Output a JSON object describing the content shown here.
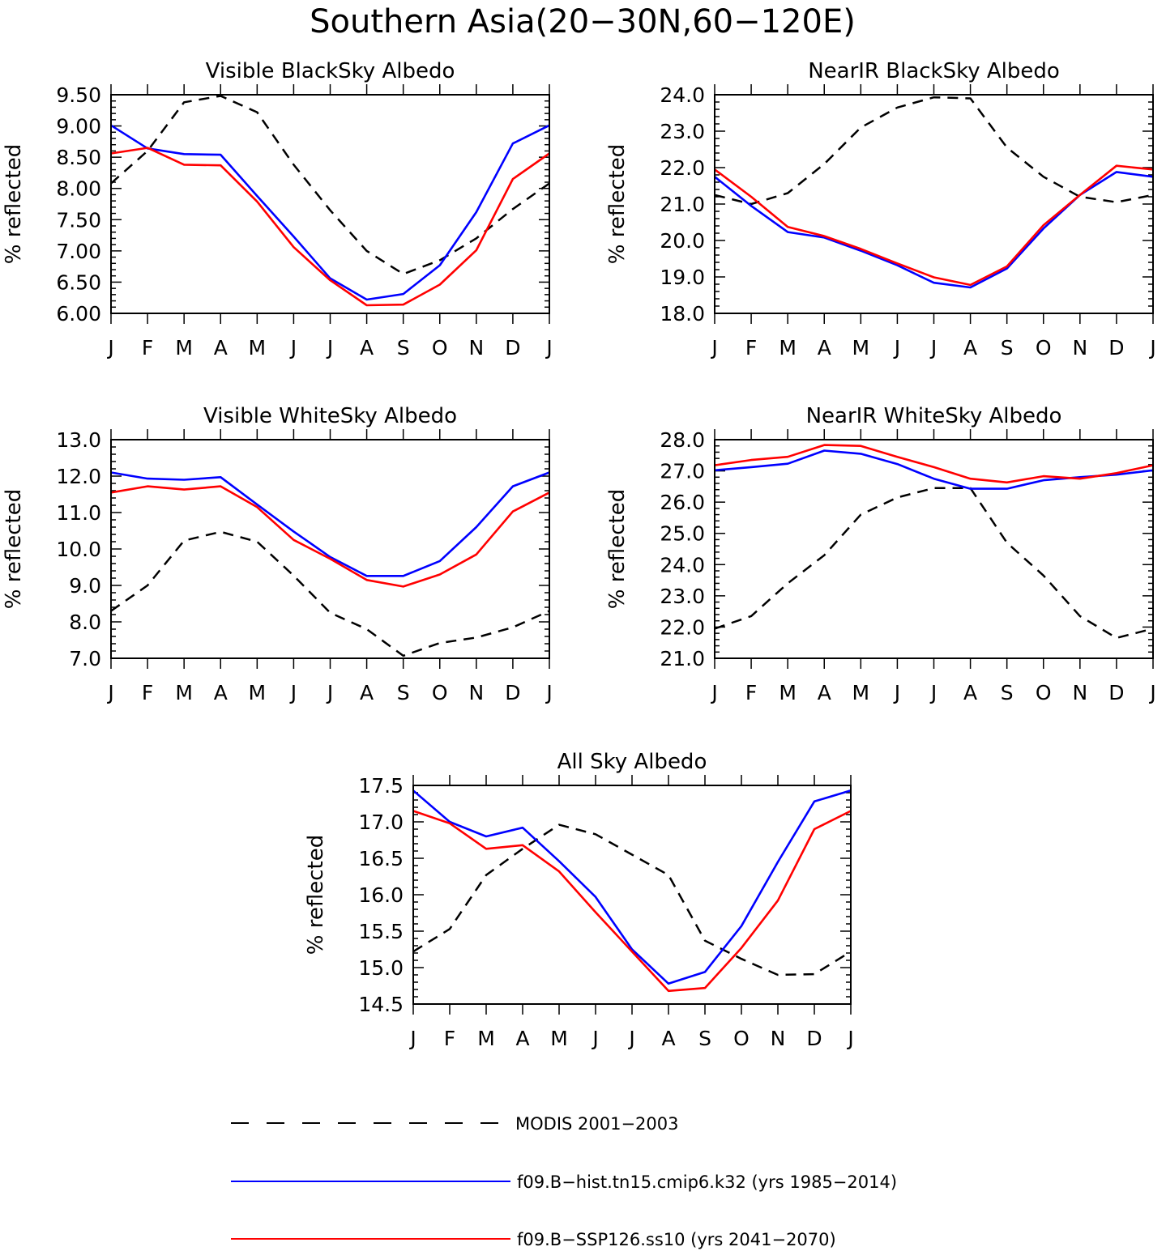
{
  "figure": {
    "title": "Southern Asia(20−30N,60−120E)"
  },
  "legend": {
    "entries": [
      {
        "label": "MODIS 2001−2003",
        "color": "#000000",
        "dash": true
      },
      {
        "label": "f09.B−hist.tn15.cmip6.k32 (yrs 1985−2014)",
        "color": "#0000ff",
        "dash": false
      },
      {
        "label": "f09.B−SSP126.ss10 (yrs 2041−2070)",
        "color": "#ff0000",
        "dash": false
      }
    ]
  },
  "chart_data": [
    {
      "type": "line",
      "title": "Visible BlackSky Albedo",
      "ylabel": "% reflected",
      "categories": [
        "J",
        "F",
        "M",
        "A",
        "M",
        "J",
        "J",
        "A",
        "S",
        "O",
        "N",
        "D",
        "J"
      ],
      "ylim": [
        6.0,
        9.5
      ],
      "yticks": [
        "6.00",
        "6.50",
        "7.00",
        "7.50",
        "8.00",
        "8.50",
        "9.00",
        "9.50"
      ],
      "series": [
        {
          "name": "MODIS 2001−2003",
          "color": "#000000",
          "dash": true,
          "values": [
            8.08,
            8.6,
            9.38,
            9.48,
            9.22,
            8.38,
            7.65,
            7.0,
            6.63,
            6.85,
            7.2,
            7.67,
            8.08
          ]
        },
        {
          "name": "f09.B−hist.tn15.cmip6.k32 (yrs 1985−2014)",
          "color": "#0000ff",
          "dash": false,
          "values": [
            9.01,
            8.64,
            8.55,
            8.54,
            7.88,
            7.23,
            6.56,
            6.22,
            6.31,
            6.77,
            7.62,
            8.72,
            9.01
          ]
        },
        {
          "name": "f09.B−SSP126.ss10 (yrs 2041−2070)",
          "color": "#ff0000",
          "dash": false,
          "values": [
            8.56,
            8.65,
            8.38,
            8.37,
            7.79,
            7.06,
            6.53,
            6.13,
            6.14,
            6.46,
            7.01,
            8.15,
            8.56
          ]
        }
      ]
    },
    {
      "type": "line",
      "title": "NearIR BlackSky Albedo",
      "ylabel": "% reflected",
      "categories": [
        "J",
        "F",
        "M",
        "A",
        "M",
        "J",
        "J",
        "A",
        "S",
        "O",
        "N",
        "D",
        "J"
      ],
      "ylim": [
        18.0,
        24.0
      ],
      "yticks": [
        "18.0",
        "19.0",
        "20.0",
        "21.0",
        "22.0",
        "23.0",
        "24.0"
      ],
      "series": [
        {
          "name": "MODIS 2001−2003",
          "color": "#000000",
          "dash": true,
          "values": [
            21.25,
            21.0,
            21.3,
            22.1,
            23.1,
            23.65,
            23.93,
            23.9,
            22.55,
            21.75,
            21.2,
            21.05,
            21.25
          ]
        },
        {
          "name": "f09.B−hist.tn15.cmip6.k32 (yrs 1985−2014)",
          "color": "#0000ff",
          "dash": false,
          "values": [
            21.75,
            20.95,
            20.23,
            20.08,
            19.72,
            19.32,
            18.84,
            18.71,
            19.23,
            20.33,
            21.25,
            21.88,
            21.75
          ]
        },
        {
          "name": "f09.B−SSP126.ss10 (yrs 2041−2070)",
          "color": "#ff0000",
          "dash": false,
          "values": [
            21.95,
            21.2,
            20.37,
            20.12,
            19.77,
            19.37,
            18.99,
            18.78,
            19.29,
            20.42,
            21.25,
            22.05,
            21.95
          ]
        }
      ]
    },
    {
      "type": "line",
      "title": "Visible WhiteSky Albedo",
      "ylabel": "% reflected",
      "categories": [
        "J",
        "F",
        "M",
        "A",
        "M",
        "J",
        "J",
        "A",
        "S",
        "O",
        "N",
        "D",
        "J"
      ],
      "ylim": [
        7.0,
        13.0
      ],
      "yticks": [
        "7.0",
        "8.0",
        "9.0",
        "10.0",
        "11.0",
        "12.0",
        "13.0"
      ],
      "series": [
        {
          "name": "MODIS 2001−2003",
          "color": "#000000",
          "dash": true,
          "values": [
            8.3,
            9.0,
            10.23,
            10.47,
            10.2,
            9.27,
            8.25,
            7.8,
            7.07,
            7.42,
            7.57,
            7.85,
            8.3
          ]
        },
        {
          "name": "f09.B−hist.tn15.cmip6.k32 (yrs 1985−2014)",
          "color": "#0000ff",
          "dash": false,
          "values": [
            12.1,
            11.93,
            11.9,
            11.97,
            11.22,
            10.48,
            9.78,
            9.26,
            9.26,
            9.67,
            10.6,
            11.72,
            12.1
          ]
        },
        {
          "name": "f09.B−SSP126.ss10 (yrs 2041−2070)",
          "color": "#ff0000",
          "dash": false,
          "values": [
            11.55,
            11.72,
            11.63,
            11.72,
            11.15,
            10.25,
            9.73,
            9.15,
            8.97,
            9.3,
            9.85,
            11.03,
            11.55
          ]
        }
      ]
    },
    {
      "type": "line",
      "title": "NearIR WhiteSky Albedo",
      "ylabel": "% reflected",
      "categories": [
        "J",
        "F",
        "M",
        "A",
        "M",
        "J",
        "J",
        "A",
        "S",
        "O",
        "N",
        "D",
        "J"
      ],
      "ylim": [
        21.0,
        28.0
      ],
      "yticks": [
        "21.0",
        "22.0",
        "23.0",
        "24.0",
        "25.0",
        "26.0",
        "27.0",
        "28.0"
      ],
      "series": [
        {
          "name": "MODIS 2001−2003",
          "color": "#000000",
          "dash": true,
          "values": [
            21.95,
            22.35,
            23.4,
            24.3,
            25.6,
            26.15,
            26.45,
            26.45,
            24.7,
            23.65,
            22.35,
            21.65,
            21.95
          ]
        },
        {
          "name": "f09.B−hist.tn15.cmip6.k32 (yrs 1985−2014)",
          "color": "#0000ff",
          "dash": false,
          "values": [
            27.02,
            27.12,
            27.23,
            27.65,
            27.55,
            27.22,
            26.75,
            26.43,
            26.43,
            26.7,
            26.8,
            26.88,
            27.02
          ]
        },
        {
          "name": "f09.B−SSP126.ss10 (yrs 2041−2070)",
          "color": "#ff0000",
          "dash": false,
          "values": [
            27.18,
            27.35,
            27.45,
            27.83,
            27.8,
            27.45,
            27.12,
            26.75,
            26.63,
            26.83,
            26.75,
            26.93,
            27.18
          ]
        }
      ]
    },
    {
      "type": "line",
      "title": "All Sky Albedo",
      "ylabel": "% reflected",
      "categories": [
        "J",
        "F",
        "M",
        "A",
        "M",
        "J",
        "J",
        "A",
        "S",
        "O",
        "N",
        "D",
        "J"
      ],
      "ylim": [
        14.5,
        17.5
      ],
      "yticks": [
        "14.5",
        "15.0",
        "15.5",
        "16.0",
        "16.5",
        "17.0",
        "17.5"
      ],
      "series": [
        {
          "name": "MODIS 2001−2003",
          "color": "#000000",
          "dash": true,
          "values": [
            15.22,
            15.53,
            16.27,
            16.63,
            16.96,
            16.83,
            16.55,
            16.27,
            15.37,
            15.12,
            14.9,
            14.91,
            15.22
          ]
        },
        {
          "name": "f09.B−hist.tn15.cmip6.k32 (yrs 1985−2014)",
          "color": "#0000ff",
          "dash": false,
          "values": [
            17.43,
            17.0,
            16.8,
            16.92,
            16.46,
            15.97,
            15.25,
            14.78,
            14.94,
            15.57,
            16.45,
            17.28,
            17.43
          ]
        },
        {
          "name": "f09.B−SSP126.ss10 (yrs 2041−2070)",
          "color": "#ff0000",
          "dash": false,
          "values": [
            17.15,
            16.98,
            16.63,
            16.68,
            16.32,
            15.76,
            15.22,
            14.68,
            14.72,
            15.27,
            15.92,
            16.9,
            17.15
          ]
        }
      ]
    }
  ]
}
